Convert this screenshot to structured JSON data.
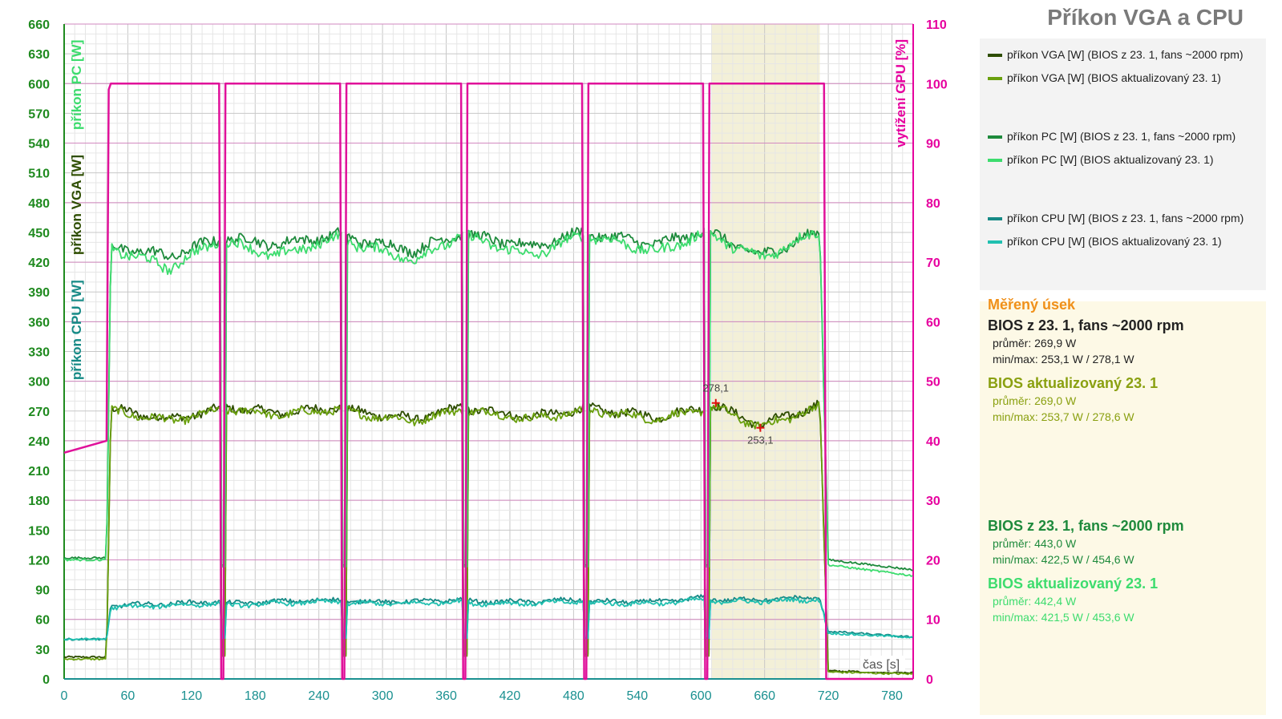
{
  "title": "Příkon VGA a CPU",
  "axes": {
    "left_labels": [
      "příkon PC [W]",
      "příkon VGA [W]",
      "příkon CPU [W]"
    ],
    "right_label": "vytížení GPU [%]",
    "x_label": "čas [s]"
  },
  "legend": [
    {
      "label": "příkon VGA [W] (BIOS  z 23. 1, fans ~2000 rpm)",
      "color": "#2e4d00"
    },
    {
      "label": "příkon VGA [W] (BIOS  aktualizovaný 23. 1)",
      "color": "#6aa00e"
    },
    {
      "label": "příkon PC [W] (BIOS z 23. 1, fans ~2000 rpm)",
      "color": "#1e8a3c"
    },
    {
      "label": "příkon PC [W] (BIOS aktualizovaný 23. 1)",
      "color": "#3ddc6e"
    },
    {
      "label": "příkon CPU [W] (BIOS z 23. 1, fans ~2000 rpm)",
      "color": "#168a86"
    },
    {
      "label": "příkon CPU [W] (BIOS aktualizovaný 23. 1)",
      "color": "#20c0b0"
    }
  ],
  "stats": {
    "heading": "Měřený úsek",
    "vga_old": {
      "name": "BIOS z 23. 1, fans ~2000 rpm",
      "avg": "průměr: 269,9 W",
      "minmax": "min/max: 253,1 W / 278,1 W"
    },
    "vga_new": {
      "name": "BIOS aktualizovaný 23. 1",
      "avg": "průměr: 269,0 W",
      "minmax": "min/max: 253,7 W / 278,6 W"
    },
    "pc_old": {
      "name": "BIOS z 23. 1, fans ~2000 rpm",
      "avg": "průměr: 443,0 W",
      "minmax": "min/max: 422,5 W / 454,6 W"
    },
    "pc_new": {
      "name": "BIOS aktualizovaný 23. 1",
      "avg": "průměr: 442,4 W",
      "minmax": "min/max: 421,5 W / 453,6 W"
    }
  },
  "annotations": {
    "max_label": "278,1",
    "min_label": "253,1"
  },
  "colors": {
    "left_axis": "#1f8a1f",
    "right_axis": "#e6009e",
    "gpu_load": "#e0109a",
    "highlight": "#f3f0d8",
    "stats_heading": "#f0901a",
    "pc_stats_text": "#1e8a3c",
    "vga_new_stats_text": "#8aa010"
  },
  "chart_data": {
    "type": "line",
    "x_unit": "s",
    "xlim": [
      0,
      800
    ],
    "ylim_left": [
      0,
      660
    ],
    "ylim_right": [
      0,
      110
    ],
    "x_ticks": [
      0,
      60,
      120,
      180,
      240,
      300,
      360,
      420,
      480,
      540,
      600,
      660,
      720,
      780
    ],
    "y_ticks_left": [
      0,
      30,
      60,
      90,
      120,
      150,
      180,
      210,
      240,
      270,
      300,
      330,
      360,
      390,
      420,
      450,
      480,
      510,
      540,
      570,
      600,
      630,
      660
    ],
    "y_ticks_right": [
      0,
      10,
      20,
      30,
      40,
      50,
      60,
      70,
      80,
      90,
      100,
      110
    ],
    "measured_interval": [
      610,
      712
    ],
    "markers": [
      {
        "x": 614,
        "y": 278.1,
        "label": "278,1"
      },
      {
        "x": 656,
        "y": 253.1,
        "label": "253,1"
      }
    ],
    "dips": [
      148,
      262,
      376,
      490,
      604
    ],
    "series": [
      {
        "name": "příkon VGA [W] (BIOS  z 23. 1, fans ~2000 rpm)",
        "axis": "left",
        "color": "#2e4d00",
        "idle": 22,
        "base": 270,
        "tail": 8,
        "x": [
          0,
          40,
          44,
          100,
          148,
          155,
          200,
          262,
          270,
          330,
          376,
          384,
          440,
          490,
          498,
          560,
          604,
          612,
          656,
          712,
          720,
          800
        ],
        "y": [
          22,
          22,
          272,
          262,
          272,
          274,
          268,
          274,
          270,
          262,
          274,
          272,
          264,
          272,
          272,
          264,
          274,
          276,
          256,
          276,
          8,
          6
        ]
      },
      {
        "name": "příkon VGA [W] (BIOS  aktualizovaný 23. 1)",
        "axis": "left",
        "color": "#6aa00e",
        "idle": 20,
        "base": 269,
        "tail": 7,
        "x": [
          0,
          40,
          44,
          100,
          148,
          155,
          200,
          262,
          270,
          330,
          376,
          384,
          440,
          490,
          498,
          560,
          604,
          612,
          656,
          712,
          720,
          800
        ],
        "y": [
          20,
          20,
          270,
          260,
          270,
          272,
          266,
          272,
          268,
          260,
          272,
          270,
          262,
          270,
          270,
          262,
          272,
          274,
          254,
          274,
          7,
          5
        ]
      },
      {
        "name": "příkon PC [W] (BIOS z 23. 1, fans ~2000 rpm)",
        "axis": "left",
        "color": "#1e8a3c",
        "idle": 122,
        "base": 443,
        "tail": 110,
        "x": [
          0,
          40,
          44,
          100,
          148,
          155,
          200,
          262,
          270,
          330,
          376,
          384,
          440,
          490,
          498,
          560,
          604,
          612,
          656,
          712,
          720,
          800
        ],
        "y": [
          122,
          122,
          436,
          426,
          444,
          444,
          438,
          448,
          444,
          432,
          450,
          446,
          436,
          450,
          448,
          438,
          452,
          448,
          426,
          450,
          120,
          110
        ]
      },
      {
        "name": "příkon PC [W] (BIOS aktualizovaný 23. 1)",
        "axis": "left",
        "color": "#3ddc6e",
        "idle": 120,
        "base": 442,
        "tail": 104,
        "x": [
          0,
          40,
          44,
          100,
          148,
          155,
          200,
          262,
          270,
          330,
          376,
          384,
          440,
          490,
          498,
          560,
          604,
          612,
          656,
          712,
          720,
          800
        ],
        "y": [
          120,
          120,
          434,
          414,
          444,
          440,
          426,
          446,
          440,
          422,
          448,
          444,
          426,
          448,
          446,
          430,
          450,
          446,
          424,
          452,
          115,
          104
        ]
      },
      {
        "name": "příkon CPU [W] (BIOS z 23. 1, fans ~2000 rpm)",
        "axis": "left",
        "color": "#168a86",
        "idle": 40,
        "base": 78,
        "tail": 42,
        "x": [
          0,
          40,
          44,
          100,
          148,
          155,
          200,
          262,
          270,
          330,
          376,
          384,
          440,
          490,
          498,
          560,
          604,
          612,
          656,
          712,
          720,
          800
        ],
        "y": [
          40,
          40,
          74,
          76,
          78,
          76,
          78,
          80,
          78,
          78,
          80,
          78,
          78,
          80,
          78,
          78,
          82,
          80,
          80,
          82,
          48,
          42
        ]
      },
      {
        "name": "příkon CPU [W] (BIOS aktualizovaný 23. 1)",
        "axis": "left",
        "color": "#20c0b0",
        "idle": 40,
        "base": 76,
        "tail": 42,
        "x": [
          0,
          40,
          44,
          100,
          148,
          155,
          200,
          262,
          270,
          330,
          376,
          384,
          440,
          490,
          498,
          560,
          604,
          612,
          656,
          712,
          720,
          800
        ],
        "y": [
          40,
          40,
          72,
          74,
          76,
          74,
          76,
          78,
          76,
          76,
          78,
          76,
          76,
          78,
          76,
          76,
          80,
          78,
          78,
          80,
          46,
          42
        ]
      },
      {
        "axis": "right",
        "color": "#e0109a",
        "x": [
          0,
          40,
          42,
          44,
          146,
          148,
          150,
          152,
          260,
          262,
          264,
          266,
          374,
          376,
          378,
          380,
          488,
          490,
          492,
          494,
          602,
          604,
          606,
          608,
          716,
          718,
          720,
          800
        ],
        "y": [
          38,
          40,
          99,
          100,
          100,
          0,
          0,
          100,
          100,
          0,
          0,
          100,
          100,
          0,
          0,
          100,
          100,
          0,
          0,
          100,
          100,
          0,
          0,
          100,
          100,
          0,
          0,
          0
        ]
      }
    ]
  }
}
